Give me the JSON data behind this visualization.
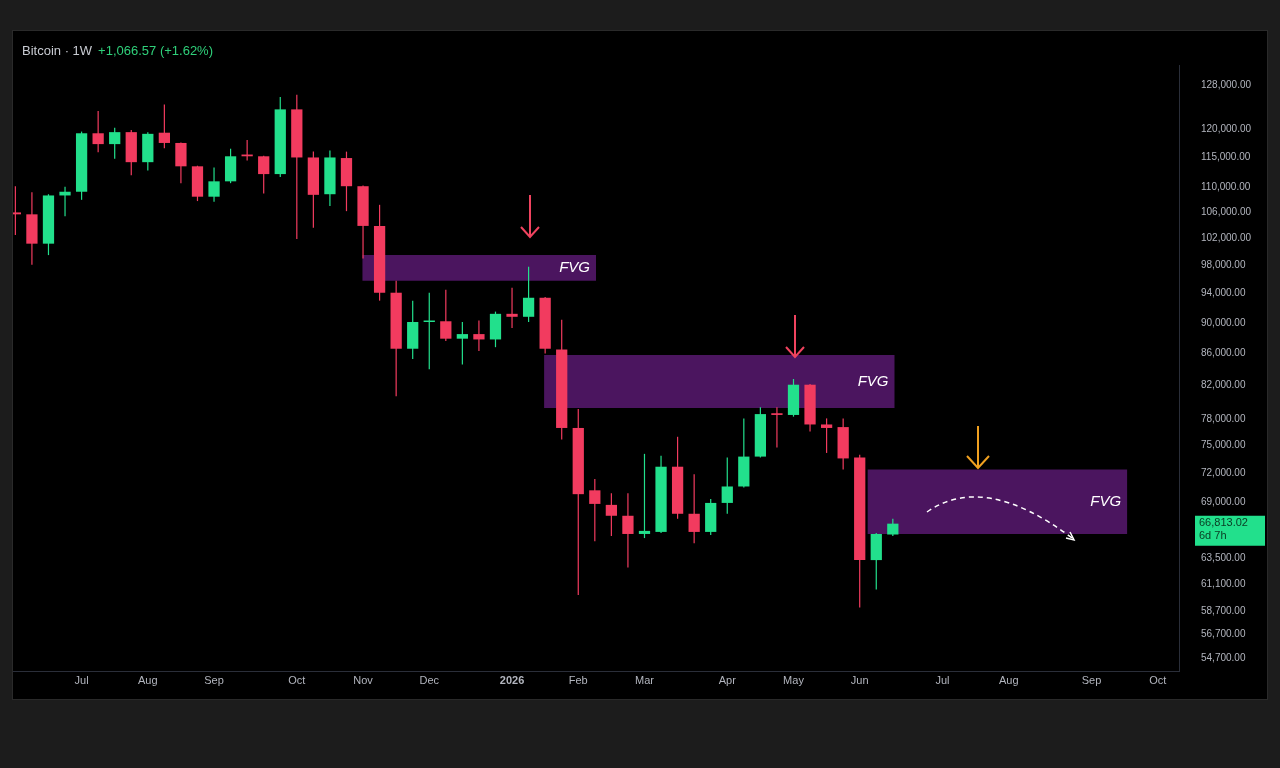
{
  "chart_data": {
    "type": "candlestick",
    "title": "Bitcoin · 1W",
    "subtitle": "+1,066.57 (+1.62%)",
    "x": [
      "2025-06-09",
      "2025-06-16",
      "2025-06-23",
      "2025-06-30",
      "2025-07-07",
      "2025-07-14",
      "2025-07-21",
      "2025-07-28",
      "2025-08-04",
      "2025-08-11",
      "2025-08-18",
      "2025-08-25",
      "2025-09-01",
      "2025-09-08",
      "2025-09-15",
      "2025-09-22",
      "2025-09-29",
      "2025-10-06",
      "2025-10-13",
      "2025-10-20",
      "2025-10-27",
      "2025-11-03",
      "2025-11-10",
      "2025-11-17",
      "2025-11-24",
      "2025-12-01",
      "2025-12-08",
      "2025-12-15",
      "2025-12-22",
      "2025-12-29",
      "2026-01-05",
      "2026-01-12",
      "2026-01-19",
      "2026-01-26",
      "2026-02-02",
      "2026-02-09",
      "2026-02-16",
      "2026-02-23",
      "2026-03-02",
      "2026-03-09",
      "2026-03-16",
      "2026-03-23",
      "2026-03-30",
      "2026-04-06",
      "2026-04-13",
      "2026-04-20",
      "2026-04-27",
      "2026-05-04",
      "2026-05-11",
      "2026-05-18",
      "2026-05-25",
      "2026-06-01",
      "2026-06-08",
      "2026-06-15"
    ],
    "ohlc": [
      [
        106000,
        110200,
        102500,
        105700
      ],
      [
        105700,
        109200,
        98100,
        101200
      ],
      [
        101200,
        108900,
        99500,
        108700
      ],
      [
        108700,
        110100,
        105400,
        109300
      ],
      [
        109300,
        119500,
        108000,
        119200
      ],
      [
        119200,
        123200,
        115900,
        117300
      ],
      [
        117300,
        120200,
        114800,
        119400
      ],
      [
        119400,
        119800,
        112000,
        114200
      ],
      [
        114200,
        119400,
        112800,
        119100
      ],
      [
        119300,
        124400,
        116600,
        117500
      ],
      [
        117500,
        117600,
        110700,
        113500
      ],
      [
        113500,
        113600,
        107800,
        108500
      ],
      [
        108500,
        113300,
        107700,
        111000
      ],
      [
        111000,
        116500,
        110700,
        115200
      ],
      [
        115500,
        118000,
        114500,
        115200
      ],
      [
        115200,
        115300,
        109000,
        112200
      ],
      [
        112200,
        125800,
        111700,
        123500
      ],
      [
        123500,
        126200,
        101900,
        115000
      ],
      [
        115000,
        116000,
        103600,
        108800
      ],
      [
        108900,
        116200,
        107000,
        115000
      ],
      [
        114900,
        116000,
        106200,
        110200
      ],
      [
        110200,
        110300,
        99000,
        103900
      ],
      [
        103900,
        107200,
        93000,
        94100
      ],
      [
        94100,
        95800,
        80700,
        86600
      ],
      [
        86600,
        93000,
        85300,
        90100
      ],
      [
        90100,
        94100,
        84000,
        90300
      ],
      [
        90200,
        94500,
        87600,
        87900
      ],
      [
        87900,
        90100,
        84600,
        88500
      ],
      [
        88500,
        90300,
        86300,
        87800
      ],
      [
        87800,
        91500,
        86800,
        91200
      ],
      [
        91200,
        94800,
        89300,
        90800
      ],
      [
        90800,
        97800,
        90100,
        93400
      ],
      [
        93400,
        93500,
        86000,
        86600
      ],
      [
        86500,
        90400,
        75700,
        77000
      ],
      [
        77000,
        79200,
        60100,
        69800
      ],
      [
        70200,
        71400,
        65100,
        68800
      ],
      [
        68700,
        69900,
        65600,
        67600
      ],
      [
        67600,
        69900,
        62600,
        65800
      ],
      [
        65800,
        74100,
        65400,
        66100
      ],
      [
        66000,
        73900,
        65900,
        72700
      ],
      [
        72700,
        76000,
        67300,
        67800
      ],
      [
        67800,
        71900,
        64900,
        66000
      ],
      [
        66000,
        69300,
        65700,
        68900
      ],
      [
        68900,
        73700,
        67800,
        70600
      ],
      [
        70600,
        78100,
        70500,
        73800
      ],
      [
        73800,
        79400,
        73700,
        78600
      ],
      [
        78700,
        79400,
        74800,
        78500
      ],
      [
        78500,
        82800,
        78300,
        82100
      ],
      [
        82100,
        82200,
        76600,
        77400
      ],
      [
        77400,
        78100,
        74200,
        77000
      ],
      [
        77100,
        78100,
        72400,
        73600
      ],
      [
        73700,
        74000,
        59000,
        63300
      ],
      [
        63300,
        65900,
        60600,
        65800
      ],
      [
        65746,
        67300,
        65600,
        66813.02
      ]
    ],
    "colors": [
      "#f23b5f",
      "#f23b5f",
      "#22e08c",
      "#22e08c",
      "#22e08c",
      "#f23b5f",
      "#22e08c",
      "#f23b5f",
      "#22e08c",
      "#f23b5f",
      "#f23b5f",
      "#f23b5f",
      "#22e08c",
      "#22e08c",
      "#f23b5f",
      "#f23b5f",
      "#22e08c",
      "#f23b5f",
      "#f23b5f",
      "#22e08c",
      "#f23b5f",
      "#f23b5f",
      "#f23b5f",
      "#f23b5f",
      "#22e08c",
      "#22e08c",
      "#f23b5f",
      "#22e08c",
      "#f23b5f",
      "#22e08c",
      "#f23b5f",
      "#22e08c",
      "#f23b5f",
      "#f23b5f",
      "#f23b5f",
      "#f23b5f",
      "#f23b5f",
      "#f23b5f",
      "#22e08c",
      "#22e08c",
      "#f23b5f",
      "#f23b5f",
      "#22e08c",
      "#22e08c",
      "#22e08c",
      "#22e08c",
      "#f23b5f",
      "#22e08c",
      "#f23b5f",
      "#f23b5f",
      "#f23b5f",
      "#f23b5f",
      "#22e08c",
      "#22e08c"
    ],
    "log": true,
    "xlim": [
      "2025-06-08",
      "2026-10-14"
    ],
    "xticks": [
      {
        "value": "2025-07-07",
        "label": "Jul"
      },
      {
        "value": "2025-08-04",
        "label": "Aug"
      },
      {
        "value": "2025-09-01",
        "label": "Sep"
      },
      {
        "value": "2025-10-06",
        "label": "Oct"
      },
      {
        "value": "2025-11-03",
        "label": "Nov"
      },
      {
        "value": "2025-12-01",
        "label": "Dec"
      },
      {
        "value": "2026-01-05",
        "label": "2026"
      },
      {
        "value": "2026-02-02",
        "label": "Feb"
      },
      {
        "value": "2026-03-02",
        "label": "Mar"
      },
      {
        "value": "2026-04-06",
        "label": "Apr"
      },
      {
        "value": "2026-05-04",
        "label": "May"
      },
      {
        "value": "2026-06-01",
        "label": "Jun"
      },
      {
        "value": "2026-07-06",
        "label": "Jul"
      },
      {
        "value": "2026-08-03",
        "label": "Aug"
      },
      {
        "value": "2026-09-07",
        "label": "Sep"
      },
      {
        "value": "2026-10-05",
        "label": "Oct"
      }
    ],
    "ylim": [
      53700,
      131900
    ],
    "yticks": [
      {
        "value": 128000,
        "label": "128,000.00"
      },
      {
        "value": 120000,
        "label": "120,000.00"
      },
      {
        "value": 115000,
        "label": "115,000.00"
      },
      {
        "value": 110000,
        "label": "110,000.00"
      },
      {
        "value": 106000,
        "label": "106,000.00"
      },
      {
        "value": 102000,
        "label": "102,000.00"
      },
      {
        "value": 98000,
        "label": "98,000.00"
      },
      {
        "value": 94000,
        "label": "94,000.00"
      },
      {
        "value": 90000,
        "label": "90,000.00"
      },
      {
        "value": 86000,
        "label": "86,000.00"
      },
      {
        "value": 82000,
        "label": "82,000.00"
      },
      {
        "value": 78000,
        "label": "78,000.00"
      },
      {
        "value": 75000,
        "label": "75,000.00"
      },
      {
        "value": 72000,
        "label": "72,000.00"
      },
      {
        "value": 69000,
        "label": "69,000.00"
      },
      {
        "value": 63500,
        "label": "63,500.00"
      },
      {
        "value": 61100,
        "label": "61,100.00"
      },
      {
        "value": 58700,
        "label": "58,700.00"
      },
      {
        "value": 56700,
        "label": "56,700.00"
      },
      {
        "value": 54700,
        "label": "54,700.00"
      }
    ],
    "bands": [
      {
        "axis": "y",
        "from": 95800,
        "to": 99500,
        "label": "FVG",
        "color": "#4b155f"
      },
      {
        "axis": "y",
        "from": 79300,
        "to": 85800,
        "label": "FVG",
        "color": "#4b155f"
      },
      {
        "axis": "y",
        "from": 65800,
        "to": 72400,
        "label": "FVG",
        "color": "#4b155f"
      }
    ],
    "annotations": [
      "66,813.02",
      "6d 7h"
    ]
  }
}
